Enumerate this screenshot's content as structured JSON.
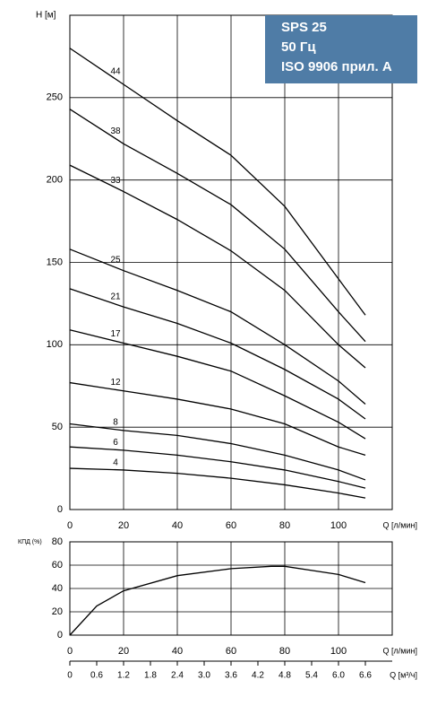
{
  "chart_data": [
    {
      "type": "line",
      "ylabel": "H [м]",
      "xlabel": "Q [л/мин]",
      "box": [
        "SPS 25",
        "50 Гц",
        "ISO 9906 прил. A"
      ],
      "box_color": "#4f7ca6",
      "x": [
        0,
        20,
        40,
        60,
        80,
        100,
        110
      ],
      "xlim": [
        0,
        120
      ],
      "xticks": [
        0,
        20,
        40,
        60,
        80,
        100
      ],
      "ylim": [
        0,
        300
      ],
      "yticks": [
        0,
        50,
        100,
        150,
        200,
        250
      ],
      "grid": true,
      "series": [
        {
          "name": "44",
          "color": "#000000",
          "values": [
            280,
            258,
            236,
            215,
            184,
            140,
            118
          ]
        },
        {
          "name": "38",
          "color": "#000000",
          "values": [
            243,
            222,
            204,
            185,
            158,
            120,
            102
          ]
        },
        {
          "name": "33",
          "color": "#000000",
          "values": [
            209,
            193,
            176,
            157,
            133,
            100,
            86
          ]
        },
        {
          "name": "25",
          "color": "#000000",
          "values": [
            158,
            145,
            133,
            120,
            100,
            78,
            64
          ]
        },
        {
          "name": "21",
          "color": "#000000",
          "values": [
            134,
            123,
            113,
            101,
            85,
            67,
            55
          ]
        },
        {
          "name": "17",
          "color": "#000000",
          "values": [
            109,
            101,
            93,
            84,
            69,
            53,
            43
          ]
        },
        {
          "name": "12",
          "color": "#000000",
          "values": [
            77,
            72,
            67,
            61,
            52,
            38,
            33
          ]
        },
        {
          "name": "8",
          "color": "#000000",
          "values": [
            52,
            48,
            45,
            40,
            33,
            24,
            18
          ]
        },
        {
          "name": "6",
          "color": "#000000",
          "values": [
            38,
            36,
            33,
            29,
            24,
            17,
            13
          ]
        },
        {
          "name": "4",
          "color": "#000000",
          "values": [
            25,
            24,
            22,
            19,
            15,
            10,
            7
          ]
        }
      ]
    },
    {
      "type": "line",
      "ylabel": "КПД (%)",
      "xlabel": "Q [л/мин]",
      "x2label": "Q [м³/ч]",
      "x": [
        0,
        10,
        20,
        40,
        60,
        75,
        80,
        100,
        110
      ],
      "xlim": [
        0,
        120
      ],
      "xticks": [
        0,
        20,
        40,
        60,
        80,
        100
      ],
      "ylim": [
        0,
        80
      ],
      "yticks": [
        0,
        20,
        40,
        60,
        80
      ],
      "grid": true,
      "x2lim": [
        0,
        7.2
      ],
      "x2ticks": [
        0,
        0.6,
        1.2,
        1.8,
        2.4,
        {
          "value": 3,
          "label": "3.0"
        },
        3.6,
        4.2,
        4.8,
        5.4,
        {
          "value": 6,
          "label": "6.0"
        },
        6.6
      ],
      "series": [
        {
          "color": "#000000",
          "values": [
            0,
            25,
            38,
            51,
            57,
            59,
            59,
            52,
            45
          ]
        }
      ]
    }
  ]
}
